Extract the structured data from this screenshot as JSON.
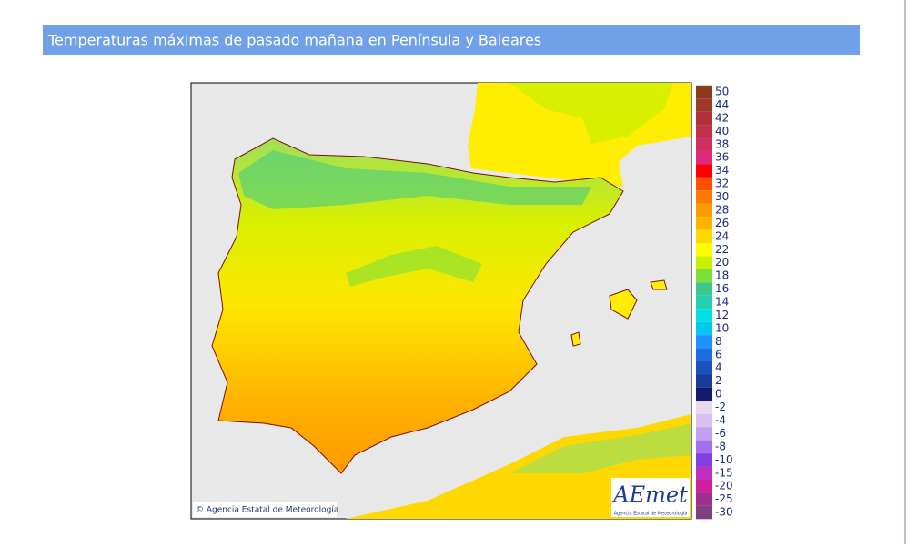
{
  "header": {
    "title": "Temperaturas máximas de pasado mañana en Península y Baleares"
  },
  "map": {
    "copyright": "© Agencia Estatal de Meteorología",
    "logo": "AEmet",
    "logo_subtitle": "Agencia Estatal de Meteorología"
  },
  "legend": {
    "entries": [
      {
        "label": "50",
        "color": "#8b3a1a"
      },
      {
        "label": "44",
        "color": "#a0392a"
      },
      {
        "label": "42",
        "color": "#b0303a"
      },
      {
        "label": "40",
        "color": "#c0304a"
      },
      {
        "label": "38",
        "color": "#d03060"
      },
      {
        "label": "36",
        "color": "#e02a80"
      },
      {
        "label": "34",
        "color": "#ff0000"
      },
      {
        "label": "32",
        "color": "#ff5000"
      },
      {
        "label": "30",
        "color": "#ff7a00"
      },
      {
        "label": "28",
        "color": "#ff9a00"
      },
      {
        "label": "26",
        "color": "#ffb400"
      },
      {
        "label": "24",
        "color": "#ffd800"
      },
      {
        "label": "22",
        "color": "#ffff00"
      },
      {
        "label": "20",
        "color": "#c8f000"
      },
      {
        "label": "18",
        "color": "#7ee03c"
      },
      {
        "label": "16",
        "color": "#3cc88c"
      },
      {
        "label": "14",
        "color": "#20d0b0"
      },
      {
        "label": "12",
        "color": "#00e0e0"
      },
      {
        "label": "10",
        "color": "#00c8f0"
      },
      {
        "label": "8",
        "color": "#1e90ff"
      },
      {
        "label": "6",
        "color": "#1c6ee0"
      },
      {
        "label": "4",
        "color": "#1a50c0"
      },
      {
        "label": "2",
        "color": "#1a3a9a"
      },
      {
        "label": "0",
        "color": "#101a6e"
      },
      {
        "label": "-2",
        "color": "#e8d8f0"
      },
      {
        "label": "-4",
        "color": "#d8c0f0"
      },
      {
        "label": "-6",
        "color": "#c0a0f0"
      },
      {
        "label": "-8",
        "color": "#a070f0"
      },
      {
        "label": "-10",
        "color": "#8040e0"
      },
      {
        "label": "-15",
        "color": "#c030c0"
      },
      {
        "label": "-20",
        "color": "#d020a0"
      },
      {
        "label": "-25",
        "color": "#a03090"
      },
      {
        "label": "-30",
        "color": "#804080"
      }
    ]
  }
}
